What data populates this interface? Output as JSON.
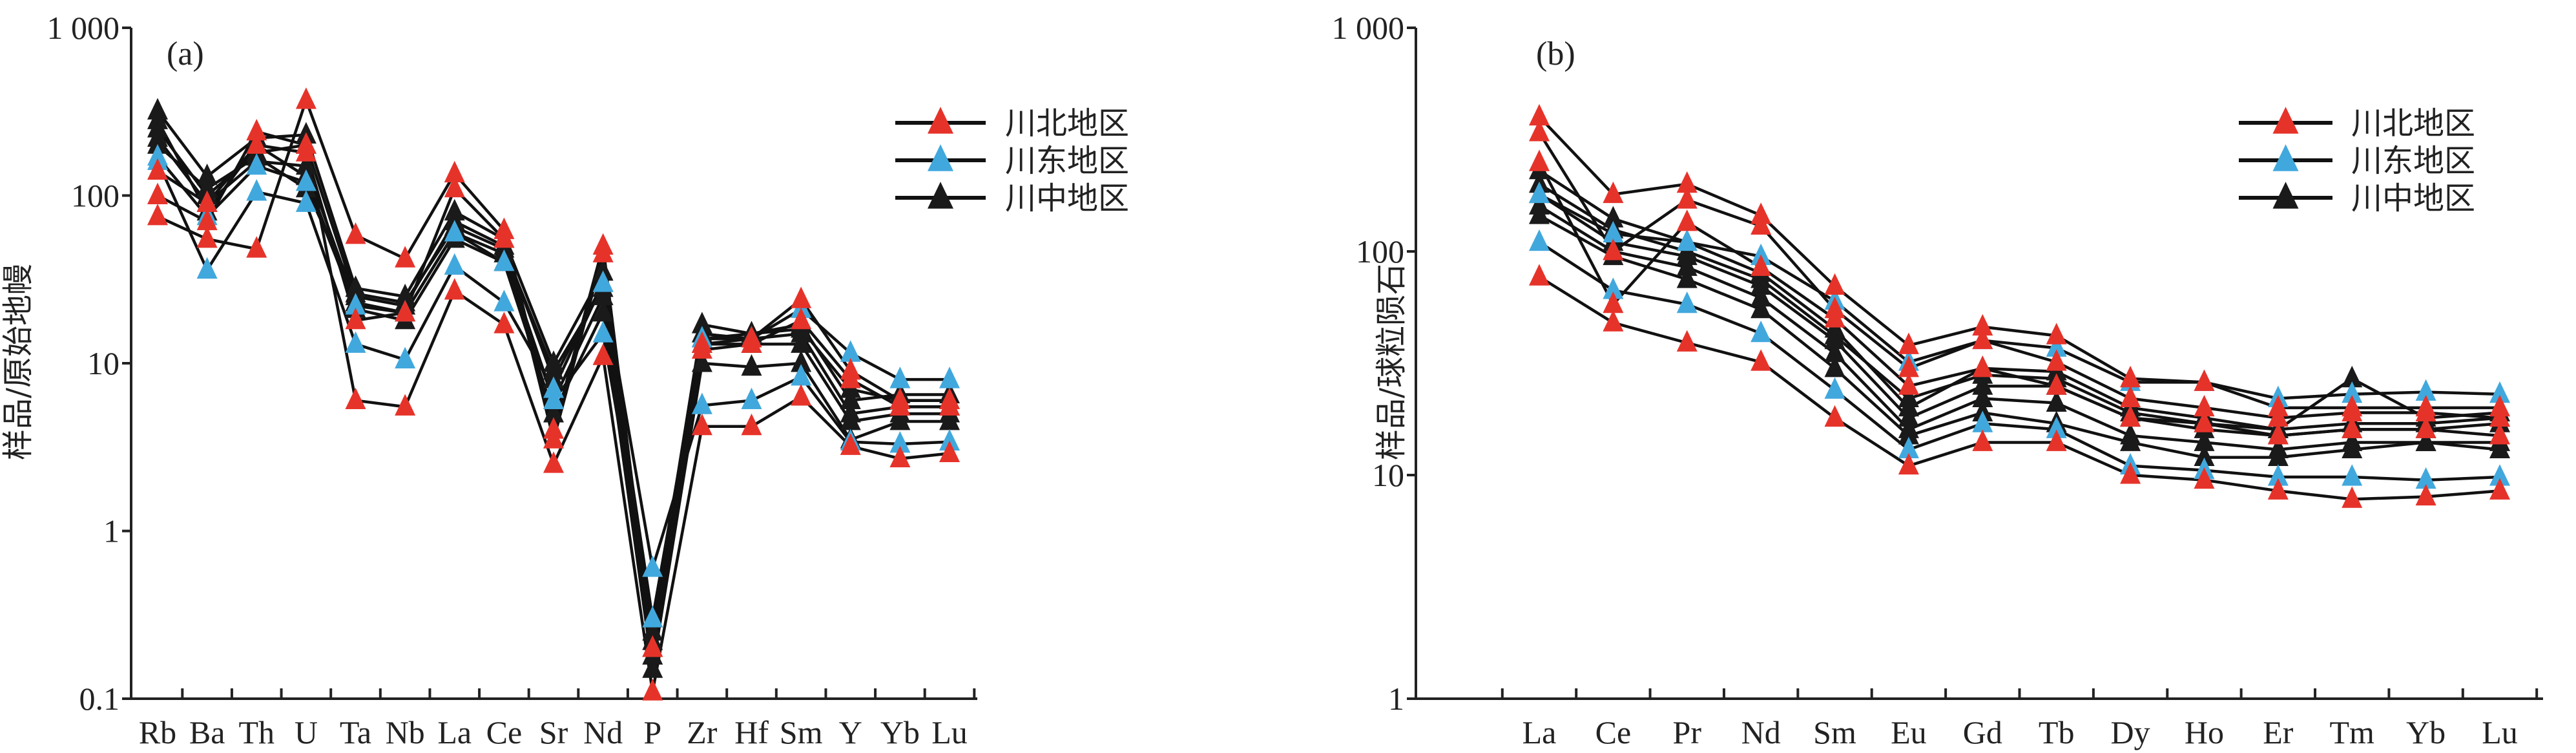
{
  "colors": {
    "川北地区": "#e6332a",
    "川东地区": "#41a8dd",
    "川中地区": "#1a1a1a",
    "line": "#111111"
  },
  "chart_data": [
    {
      "type": "line",
      "panel_label": "(a)",
      "ylabel": "样品/原始地幔",
      "xlabel": "",
      "yscale": "log",
      "ylim": [
        0.1,
        1000
      ],
      "yticks": [
        "0.1",
        "1",
        "10",
        "100",
        "1 000"
      ],
      "categories": [
        "Rb",
        "Ba",
        "Th",
        "U",
        "Ta",
        "Nb",
        "La",
        "Ce",
        "Sr",
        "Nd",
        "P",
        "Zr",
        "Hf",
        "Sm",
        "Y",
        "Yb",
        "Lu"
      ],
      "legend": [
        "川北地区",
        "川东地区",
        "川中地区"
      ],
      "legend_position": "top-right",
      "series": [
        {
          "group": "川中地区",
          "values": [
            320,
            130,
            220,
            230,
            28,
            25,
            80,
            55,
            10,
            35,
            0.25,
            17,
            15,
            17,
            6,
            6.5,
            6.5
          ]
        },
        {
          "group": "川中地区",
          "values": [
            250,
            100,
            180,
            200,
            25,
            22,
            70,
            50,
            8,
            30,
            0.22,
            15,
            14,
            15,
            5,
            5.5,
            5.5
          ]
        },
        {
          "group": "川中地区",
          "values": [
            220,
            90,
            160,
            150,
            23,
            20,
            60,
            45,
            6,
            25,
            0.18,
            13,
            13,
            13,
            4.5,
            5,
            5
          ]
        },
        {
          "group": "川中地区",
          "values": [
            280,
            80,
            200,
            130,
            21,
            18,
            55,
            40,
            5,
            20,
            0.15,
            10,
            9.5,
            10,
            3.5,
            4.5,
            4.5
          ]
        },
        {
          "group": "川中地区",
          "values": [
            200,
            110,
            170,
            110,
            26,
            23,
            65,
            48,
            9,
            28,
            0.3,
            14,
            15,
            16,
            7,
            6,
            6
          ]
        },
        {
          "group": "川东地区",
          "values": [
            160,
            36,
            105,
            90,
            13,
            10.5,
            38,
            23,
            7,
            30,
            0.6,
            5.6,
            6,
            8.3,
            3.4,
            3.3,
            3.4
          ]
        },
        {
          "group": "川东地区",
          "values": [
            170,
            75,
            150,
            120,
            22,
            20,
            60,
            40,
            6,
            15,
            0.3,
            14,
            14,
            21,
            11.5,
            8,
            8
          ]
        },
        {
          "group": "川北地区",
          "values": [
            75,
            55,
            48,
            370,
            58,
            42,
            135,
            62,
            4,
            50,
            0.2,
            13,
            14,
            24,
            9,
            6,
            6
          ]
        },
        {
          "group": "川北地区",
          "values": [
            100,
            70,
            240,
            200,
            6,
            5.5,
            27,
            17,
            2.5,
            11,
            0.11,
            4.2,
            4.2,
            6.3,
            3.2,
            2.7,
            2.9
          ]
        },
        {
          "group": "川北地区",
          "values": [
            140,
            90,
            200,
            180,
            18,
            20,
            110,
            55,
            3.5,
            45,
            0.2,
            12,
            13,
            18,
            8,
            5.5,
            5.5
          ]
        }
      ]
    },
    {
      "type": "line",
      "panel_label": "(b)",
      "ylabel": "样品/球粒陨石",
      "xlabel": "",
      "yscale": "log",
      "ylim": [
        1,
        1000
      ],
      "yticks": [
        "1",
        "10",
        "100",
        "1 000"
      ],
      "categories": [
        "La",
        "Ce",
        "Pr",
        "Nd",
        "Sm",
        "Eu",
        "Gd",
        "Tb",
        "Dy",
        "Ho",
        "Er",
        "Tm",
        "Yb",
        "Lu"
      ],
      "legend": [
        "川北地区",
        "川东地区",
        "川中地区"
      ],
      "legend_position": "top-right",
      "series": [
        {
          "group": "川中地区",
          "values": [
            230,
            140,
            110,
            80,
            45,
            20,
            30,
            29,
            20,
            18,
            16,
            27,
            18,
            19
          ]
        },
        {
          "group": "川中地区",
          "values": [
            180,
            110,
            95,
            70,
            40,
            18,
            25,
            25,
            18,
            16,
            15,
            16,
            16,
            17
          ]
        },
        {
          "group": "川中地区",
          "values": [
            160,
            100,
            85,
            62,
            35,
            16,
            22,
            21,
            15,
            14,
            13,
            14,
            14,
            14
          ]
        },
        {
          "group": "川中地区",
          "values": [
            145,
            95,
            75,
            55,
            30,
            15,
            19,
            17,
            14,
            12,
            12,
            13,
            14,
            13
          ]
        },
        {
          "group": "川中地区",
          "values": [
            200,
            125,
            100,
            75,
            42,
            22,
            28,
            27,
            19,
            17,
            16,
            17,
            17,
            18
          ]
        },
        {
          "group": "川东地区",
          "values": [
            110,
            67,
            58,
            43,
            24,
            13,
            17,
            16,
            11,
            10.5,
            9.8,
            9.8,
            9.5,
            9.8
          ]
        },
        {
          "group": "川东地区",
          "values": [
            180,
            120,
            110,
            95,
            60,
            32,
            40,
            37,
            26,
            26,
            22,
            23,
            23.5,
            23
          ]
        },
        {
          "group": "川北地区",
          "values": [
            400,
            180,
            200,
            145,
            70,
            38,
            46,
            42,
            27,
            26,
            20,
            20,
            20,
            20
          ]
        },
        {
          "group": "川北地区",
          "values": [
            77,
            48,
            39,
            32,
            18,
            11,
            14,
            14,
            10,
            9.5,
            8.5,
            7.8,
            8,
            8.5
          ]
        },
        {
          "group": "川北地区",
          "values": [
            340,
            100,
            170,
            130,
            55,
            30,
            40,
            32,
            22,
            20,
            18,
            19,
            19,
            18
          ]
        },
        {
          "group": "川北地区",
          "values": [
            250,
            58,
            135,
            85,
            50,
            25,
            30,
            25,
            18,
            17,
            15,
            16,
            16,
            15
          ]
        }
      ]
    }
  ]
}
